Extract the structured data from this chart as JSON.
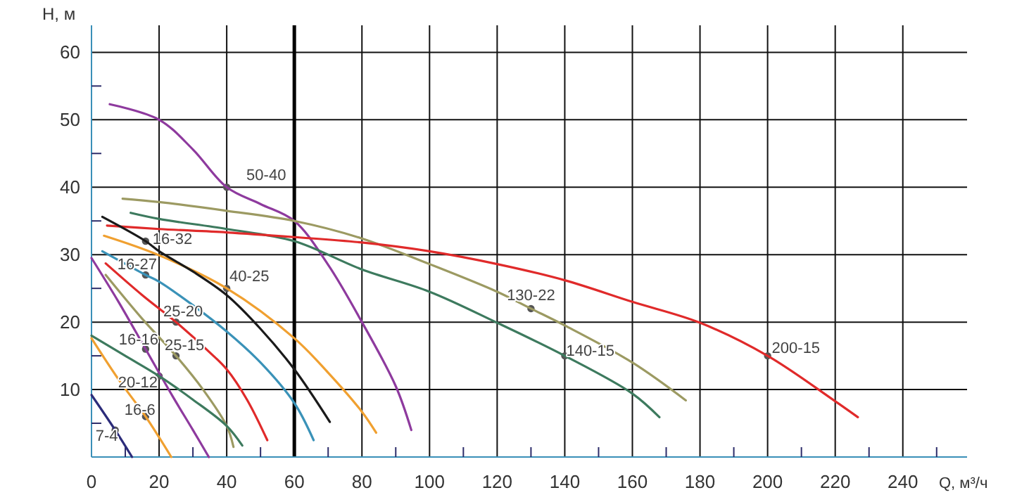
{
  "chart_data": {
    "type": "line",
    "xlabel": "Q, м³/ч",
    "ylabel": "H, м",
    "xlim": [
      0,
      259
    ],
    "ylim": [
      0,
      64
    ],
    "xticks": [
      0,
      {
        "value": 10,
        "label": null
      },
      20,
      {
        "value": 30,
        "label": null
      },
      40,
      {
        "value": 50,
        "label": null
      },
      60,
      {
        "value": 70,
        "label": null
      },
      80,
      {
        "value": 90,
        "label": null
      },
      100,
      {
        "value": 110,
        "label": null
      },
      120,
      {
        "value": 130,
        "label": null
      },
      140,
      {
        "value": 150,
        "label": null
      },
      160,
      {
        "value": 170,
        "label": null
      },
      180,
      {
        "value": 190,
        "label": null
      },
      200,
      {
        "value": 210,
        "label": null
      },
      220,
      {
        "value": 230,
        "label": null
      },
      240,
      {
        "value": 250,
        "label": null
      }
    ],
    "yticks": [
      {
        "value": 5,
        "label": null
      },
      10,
      {
        "value": 15,
        "label": null
      },
      20,
      {
        "value": 25,
        "label": null
      },
      30,
      {
        "value": 35,
        "label": null
      },
      40,
      {
        "value": 45,
        "label": null
      },
      50,
      {
        "value": 55,
        "label": null
      },
      60
    ],
    "grid": true,
    "marker": "none",
    "line_style": "solid",
    "ref_lines": [
      {
        "axis": "x",
        "value": 60,
        "color": "#000000"
      }
    ],
    "series": [
      {
        "color": "#8e3a9e",
        "x": [
          5.4,
          20,
          30,
          40,
          50,
          60,
          70,
          80,
          90,
          94.6
        ],
        "values": [
          52.3,
          50,
          45.6,
          40,
          37.5,
          35,
          28.5,
          20,
          10.5,
          4
        ]
      },
      {
        "color": "#9c9a62",
        "x": [
          9.2,
          20,
          40,
          60,
          80,
          100,
          120,
          130,
          140,
          160,
          175.8
        ],
        "values": [
          38.3,
          37.8,
          36.5,
          35,
          32.4,
          28.6,
          24.5,
          22,
          19.5,
          14,
          8.4
        ]
      },
      {
        "color": "#3d7a5e",
        "x": [
          11.6,
          20,
          40,
          60,
          80,
          100,
          120,
          140,
          160,
          168
        ],
        "values": [
          36.2,
          35.3,
          33.8,
          32,
          27.8,
          24.5,
          19.9,
          15,
          9.4,
          5.9
        ]
      },
      {
        "color": "#e02a2a",
        "x": [
          4.6,
          20,
          40,
          60,
          80,
          100,
          120,
          140,
          160,
          180,
          200,
          219.6,
          226.7
        ],
        "values": [
          34.3,
          33.8,
          33.3,
          32.6,
          31.8,
          30.5,
          28.6,
          26.2,
          23,
          19.9,
          15,
          8.4,
          5.9
        ]
      },
      {
        "color": "#f0a030",
        "x": [
          3.7,
          20,
          40,
          60,
          70,
          80,
          84.2
        ],
        "values": [
          32.8,
          29.9,
          25,
          17.6,
          12.5,
          6.7,
          3.6
        ]
      },
      {
        "color": "#1a1a1a",
        "x": [
          3.2,
          16,
          20,
          30,
          40,
          50,
          60,
          70.5
        ],
        "values": [
          35.6,
          32,
          30.5,
          27.5,
          24,
          19,
          13,
          5.2
        ]
      },
      {
        "color": "#3a92b8",
        "x": [
          3.2,
          16,
          20,
          30,
          40,
          50,
          60,
          65.7
        ],
        "values": [
          30.5,
          27,
          26,
          22.5,
          18.6,
          14,
          8,
          2.5
        ]
      },
      {
        "color": "#e02a2a",
        "x": [
          4.2,
          15,
          25,
          35,
          40,
          46,
          52
        ],
        "values": [
          28.7,
          24,
          20,
          15.5,
          13,
          8.5,
          2.5
        ]
      },
      {
        "color": "#9c9a62",
        "x": [
          4.2,
          15,
          25,
          33,
          40,
          42
        ],
        "values": [
          27,
          20.5,
          15,
          10,
          4.6,
          1.5
        ]
      },
      {
        "color": "#8e3a9e",
        "x": [
          0,
          8,
          16,
          24,
          30,
          34.7
        ],
        "values": [
          29.5,
          23,
          16,
          9,
          4,
          0
        ]
      },
      {
        "color": "#3d7a5e",
        "x": [
          0,
          10,
          20,
          30,
          40,
          44.6
        ],
        "values": [
          18,
          15,
          12,
          8.5,
          4.6,
          1.7
        ]
      },
      {
        "color": "#f0a030",
        "x": [
          0,
          8,
          16,
          23.6
        ],
        "values": [
          17.6,
          11.5,
          6,
          0
        ]
      },
      {
        "color": "#2c2c7a",
        "x": [
          0,
          7,
          12
        ],
        "values": [
          9.2,
          4,
          0
        ]
      }
    ],
    "annotations": [
      {
        "text": "50-40",
        "x": 40,
        "y": 40
      },
      {
        "text": "130-22",
        "x": 130,
        "y": 22
      },
      {
        "text": "140-15",
        "x": 140,
        "y": 15
      },
      {
        "text": "200-15",
        "x": 200,
        "y": 15
      },
      {
        "text": "40-25",
        "x": 40,
        "y": 25
      },
      {
        "text": "16-32",
        "x": 16,
        "y": 32
      },
      {
        "text": "16-27",
        "x": 16,
        "y": 27
      },
      {
        "text": "25-20",
        "x": 25,
        "y": 20
      },
      {
        "text": "25-15",
        "x": 25,
        "y": 15
      },
      {
        "text": "16-16",
        "x": 16,
        "y": 16
      },
      {
        "text": "20-12",
        "x": 20,
        "y": 12
      },
      {
        "text": "16-6",
        "x": 16,
        "y": 6
      },
      {
        "text": "7-4",
        "x": 7,
        "y": 4
      }
    ]
  }
}
